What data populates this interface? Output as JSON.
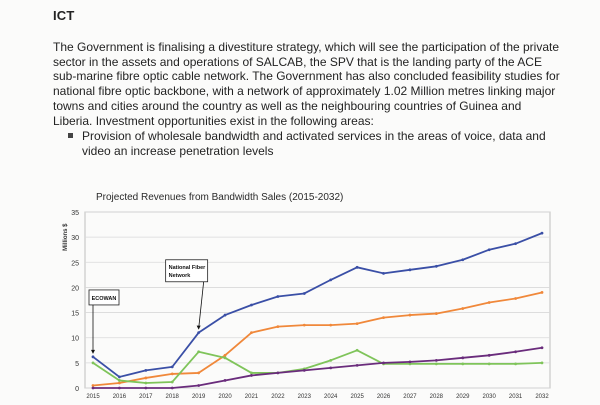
{
  "document": {
    "heading": "ICT",
    "paragraph": "The Government is finalising a divestiture strategy, which will see the participation of the private sector in the assets and operations of SALCAB, the SPV that is the landing party of the ACE sub-marine fibre optic cable network. The Government has also concluded feasibility studies for national fibre optic backbone, with a network of approximately 1.02 Million metres linking major towns and cities around the country as well as the neighbouring countries of Guinea and Liberia. Investment opportunities exist in the following areas:",
    "bullets": [
      "Provision of wholesale bandwidth and activated services in the areas of voice, data and video an increase penetration levels"
    ]
  },
  "chart_data": {
    "type": "line",
    "title": "Projected Revenues from Bandwidth Sales (2015-2032)",
    "ylabel": "Millions $",
    "ylim": [
      0,
      35
    ],
    "yticks": [
      0,
      5,
      10,
      15,
      20,
      25,
      30,
      35
    ],
    "x": [
      "2015",
      "2016",
      "2017",
      "2018",
      "2019",
      "2020",
      "2021",
      "2022",
      "2023",
      "2024",
      "2025",
      "2026",
      "2027",
      "2028",
      "2029",
      "2030",
      "2031",
      "2032"
    ],
    "series": [
      {
        "color": "#3a4fa6",
        "values": [
          6.2,
          2.2,
          3.5,
          4.2,
          11.0,
          14.5,
          16.5,
          18.2,
          18.8,
          21.5,
          24.0,
          22.8,
          23.5,
          24.2,
          25.5,
          27.5,
          28.7,
          30.8
        ]
      },
      {
        "color": "#f0883a",
        "values": [
          0.5,
          1.0,
          2.0,
          2.8,
          3.0,
          6.5,
          11.0,
          12.2,
          12.5,
          12.5,
          12.8,
          14.0,
          14.5,
          14.8,
          15.8,
          17.0,
          17.8,
          19.0
        ]
      },
      {
        "color": "#7fc45a",
        "values": [
          5.0,
          1.5,
          1.0,
          1.2,
          7.2,
          6.0,
          3.0,
          3.0,
          3.8,
          5.5,
          7.5,
          4.8,
          4.8,
          4.8,
          4.8,
          4.8,
          4.8,
          5.0
        ]
      },
      {
        "color": "#6a2c7c",
        "values": [
          0.0,
          0.0,
          0.0,
          0.0,
          0.5,
          1.5,
          2.5,
          3.0,
          3.5,
          4.0,
          4.5,
          5.0,
          5.2,
          5.5,
          6.0,
          6.5,
          7.2,
          8.0
        ]
      }
    ],
    "annotations": [
      {
        "text": "ECOWAN",
        "x": "2015",
        "y": 6.2
      },
      {
        "text": "National Fiber Network",
        "x": "2019",
        "y": 11.0
      }
    ]
  }
}
